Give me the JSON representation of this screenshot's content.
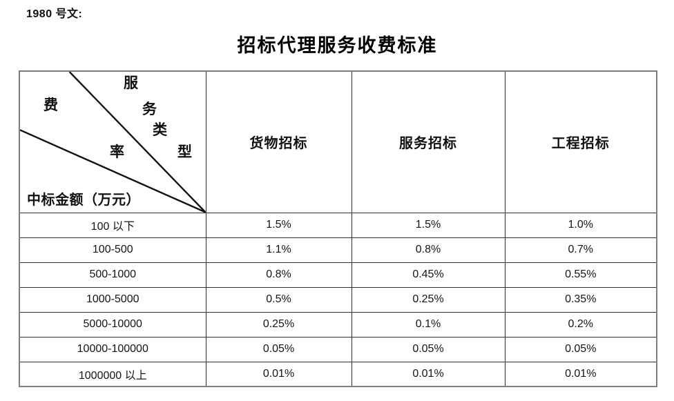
{
  "page": {
    "doc_ref": "1980 号文:",
    "title": "招标代理服务收费标准"
  },
  "table": {
    "corner": {
      "service_type_chars": [
        "服",
        "务",
        "类",
        "型"
      ],
      "fee_rate_chars": [
        "费",
        "率"
      ],
      "bottom_label": "中标金额（万元）"
    },
    "columns": [
      "货物招标",
      "服务招标",
      "工程招标"
    ],
    "rows": [
      {
        "range": "100 以下",
        "values": [
          "1.5%",
          "1.5%",
          "1.0%"
        ]
      },
      {
        "range": "100-500",
        "values": [
          "1.1%",
          "0.8%",
          "0.7%"
        ]
      },
      {
        "range": "500-1000",
        "values": [
          "0.8%",
          "0.45%",
          "0.55%"
        ]
      },
      {
        "range": "1000-5000",
        "values": [
          "0.5%",
          "0.25%",
          "0.35%"
        ]
      },
      {
        "range": "5000-10000",
        "values": [
          "0.25%",
          "0.1%",
          "0.2%"
        ]
      },
      {
        "range": "10000-100000",
        "values": [
          "0.05%",
          "0.05%",
          "0.05%"
        ]
      },
      {
        "range": "1000000 以上",
        "values": [
          "0.01%",
          "0.01%",
          "0.01%"
        ]
      }
    ],
    "colors": {
      "text": "#111111",
      "border_outer": "#7d7d7d",
      "border_inner": "#2e2e2e",
      "diagonal_line": "#111111",
      "background": "#ffffff"
    }
  }
}
